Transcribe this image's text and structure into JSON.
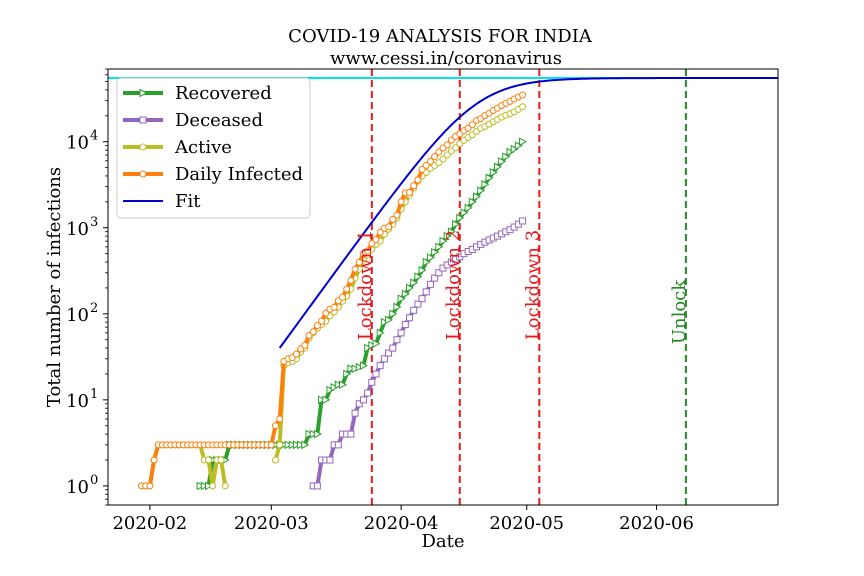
{
  "chart_data": {
    "type": "line",
    "title": "COVID-19 ANALYSIS FOR INDIA",
    "subtitle": "www.cessi.in/coronavirus",
    "xlabel": "Date",
    "ylabel": "Total number of infections",
    "yscale": "log",
    "xlim": [
      "2020-01-22",
      "2020-06-30"
    ],
    "ylim": [
      0.6,
      70000
    ],
    "x_ticks": [
      "2020-02",
      "2020-03",
      "2020-04",
      "2020-05",
      "2020-06"
    ],
    "y_ticks": [
      "10^0",
      "10^1",
      "10^2",
      "10^3",
      "10^4"
    ],
    "grid": false,
    "legend_position": "top-left",
    "horizontal_line": {
      "y": 55000,
      "color": "#00e5ee"
    },
    "vertical_lines": [
      {
        "date": "2020-03-25",
        "label": "Lockdown 1",
        "color": "#e41a1c"
      },
      {
        "date": "2020-04-15",
        "label": "Lockdown 2",
        "color": "#e41a1c"
      },
      {
        "date": "2020-05-04",
        "label": "Lockdown 3",
        "color": "#e41a1c"
      },
      {
        "date": "2020-06-08",
        "label": "Unlock",
        "color": "#228b22"
      }
    ],
    "series": [
      {
        "name": "Recovered",
        "color": "#2ca02c",
        "marker": "triangle",
        "segments": [
          {
            "x": [
              "2020-02-13",
              "2020-02-14",
              "2020-02-15",
              "2020-02-16",
              "2020-02-17",
              "2020-02-18",
              "2020-02-19",
              "2020-02-20",
              "2020-02-21",
              "2020-02-22",
              "2020-02-23",
              "2020-02-24",
              "2020-02-25",
              "2020-02-26",
              "2020-02-27",
              "2020-02-28",
              "2020-02-29",
              "2020-03-01",
              "2020-03-02",
              "2020-03-03",
              "2020-03-04",
              "2020-03-05",
              "2020-03-06",
              "2020-03-07",
              "2020-03-08",
              "2020-03-09",
              "2020-03-10",
              "2020-03-11",
              "2020-03-12",
              "2020-03-13",
              "2020-03-14",
              "2020-03-15",
              "2020-03-16",
              "2020-03-17",
              "2020-03-18",
              "2020-03-19",
              "2020-03-20",
              "2020-03-21",
              "2020-03-22",
              "2020-03-23",
              "2020-03-24",
              "2020-03-25",
              "2020-03-26",
              "2020-03-27",
              "2020-03-28",
              "2020-03-29",
              "2020-03-30",
              "2020-03-31",
              "2020-04-01",
              "2020-04-02",
              "2020-04-03",
              "2020-04-04",
              "2020-04-05",
              "2020-04-06",
              "2020-04-07",
              "2020-04-08",
              "2020-04-09",
              "2020-04-10",
              "2020-04-11",
              "2020-04-12",
              "2020-04-13",
              "2020-04-14",
              "2020-04-15",
              "2020-04-16",
              "2020-04-17",
              "2020-04-18",
              "2020-04-19",
              "2020-04-20",
              "2020-04-21",
              "2020-04-22",
              "2020-04-23",
              "2020-04-24",
              "2020-04-25",
              "2020-04-26",
              "2020-04-27",
              "2020-04-28",
              "2020-04-29",
              "2020-04-30"
            ],
            "y": [
              1,
              1,
              1,
              2,
              2,
              2,
              2,
              3,
              3,
              3,
              3,
              3,
              3,
              3,
              3,
              3,
              3,
              3,
              3,
              3,
              3,
              3,
              3,
              3,
              3,
              3,
              4,
              4,
              4,
              10,
              10,
              13,
              14,
              15,
              15,
              20,
              23,
              23,
              24,
              25,
              40,
              43,
              45,
              60,
              80,
              85,
              100,
              120,
              150,
              170,
              200,
              230,
              270,
              320,
              400,
              450,
              520,
              600,
              700,
              800,
              900,
              1100,
              1300,
              1500,
              1700,
              2000,
              2300,
              2700,
              3200,
              3800,
              4400,
              5100,
              5900,
              6700,
              7600,
              8200,
              9000,
              10000
            ]
          }
        ]
      },
      {
        "name": "Deceased",
        "color": "#9467bd",
        "marker": "square",
        "segments": [
          {
            "x": [
              "2020-03-11",
              "2020-03-12",
              "2020-03-13",
              "2020-03-14",
              "2020-03-15",
              "2020-03-16",
              "2020-03-17",
              "2020-03-18",
              "2020-03-19",
              "2020-03-20",
              "2020-03-21",
              "2020-03-22",
              "2020-03-23",
              "2020-03-24",
              "2020-03-25",
              "2020-03-26",
              "2020-03-27",
              "2020-03-28",
              "2020-03-29",
              "2020-03-30",
              "2020-03-31",
              "2020-04-01",
              "2020-04-02",
              "2020-04-03",
              "2020-04-04",
              "2020-04-05",
              "2020-04-06",
              "2020-04-07",
              "2020-04-08",
              "2020-04-09",
              "2020-04-10",
              "2020-04-11",
              "2020-04-12",
              "2020-04-13",
              "2020-04-14",
              "2020-04-15",
              "2020-04-16",
              "2020-04-17",
              "2020-04-18",
              "2020-04-19",
              "2020-04-20",
              "2020-04-21",
              "2020-04-22",
              "2020-04-23",
              "2020-04-24",
              "2020-04-25",
              "2020-04-26",
              "2020-04-27",
              "2020-04-28",
              "2020-04-29",
              "2020-04-30"
            ],
            "y": [
              1,
              1,
              2,
              2,
              2,
              3,
              3,
              4,
              4,
              4,
              7,
              9,
              10,
              12,
              16,
              20,
              25,
              30,
              35,
              40,
              50,
              60,
              75,
              90,
              110,
              130,
              150,
              180,
              220,
              260,
              300,
              340,
              370,
              400,
              430,
              460,
              500,
              530,
              560,
              600,
              640,
              680,
              720,
              760,
              800,
              850,
              900,
              950,
              1020,
              1100,
              1200
            ]
          }
        ]
      },
      {
        "name": "Active",
        "color": "#bcbd22",
        "marker": "circle",
        "segments": [
          {
            "x": [
              "2020-01-30",
              "2020-01-31",
              "2020-02-01",
              "2020-02-02",
              "2020-02-03",
              "2020-02-04",
              "2020-02-05",
              "2020-02-06",
              "2020-02-07",
              "2020-02-08",
              "2020-02-09",
              "2020-02-10",
              "2020-02-11",
              "2020-02-12",
              "2020-02-13",
              "2020-02-14",
              "2020-02-15",
              "2020-02-16",
              "2020-02-17",
              "2020-02-18",
              "2020-02-19"
            ],
            "y": [
              1,
              1,
              1,
              2,
              3,
              3,
              3,
              3,
              3,
              3,
              3,
              3,
              3,
              3,
              3,
              2,
              2,
              1,
              2,
              2,
              1
            ]
          },
          {
            "x": [
              "2020-03-02",
              "2020-03-03",
              "2020-03-04",
              "2020-03-05",
              "2020-03-06",
              "2020-03-07",
              "2020-03-08",
              "2020-03-09",
              "2020-03-10",
              "2020-03-11",
              "2020-03-12",
              "2020-03-13",
              "2020-03-14",
              "2020-03-15",
              "2020-03-16",
              "2020-03-17",
              "2020-03-18",
              "2020-03-19",
              "2020-03-20",
              "2020-03-21",
              "2020-03-22",
              "2020-03-23",
              "2020-03-24",
              "2020-03-25",
              "2020-03-26",
              "2020-03-27",
              "2020-03-28",
              "2020-03-29",
              "2020-03-30",
              "2020-03-31",
              "2020-04-01",
              "2020-04-02",
              "2020-04-03",
              "2020-04-04",
              "2020-04-05",
              "2020-04-06",
              "2020-04-07",
              "2020-04-08",
              "2020-04-09",
              "2020-04-10",
              "2020-04-11",
              "2020-04-12",
              "2020-04-13",
              "2020-04-14",
              "2020-04-15",
              "2020-04-16",
              "2020-04-17",
              "2020-04-18",
              "2020-04-19",
              "2020-04-20",
              "2020-04-21",
              "2020-04-22",
              "2020-04-23",
              "2020-04-24",
              "2020-04-25",
              "2020-04-26",
              "2020-04-27",
              "2020-04-28",
              "2020-04-29",
              "2020-04-30"
            ],
            "y": [
              2,
              3,
              25,
              27,
              28,
              30,
              36,
              40,
              52,
              60,
              68,
              75,
              82,
              95,
              105,
              120,
              140,
              160,
              195,
              260,
              330,
              420,
              480,
              560,
              640,
              700,
              840,
              960,
              1100,
              1300,
              1650,
              2000,
              2400,
              2900,
              3500,
              4000,
              4400,
              4900,
              5300,
              5700,
              6300,
              7000,
              7800,
              8500,
              9500,
              10400,
              11200,
              12000,
              13200,
              14300,
              15000,
              16000,
              17000,
              18200,
              19300,
              20300,
              21200,
              22200,
              23800,
              25500
            ]
          }
        ]
      },
      {
        "name": "Daily Infected",
        "color": "#ff7f0e",
        "marker": "circle",
        "segments": [
          {
            "x": [
              "2020-01-30",
              "2020-01-31",
              "2020-02-01",
              "2020-02-02",
              "2020-02-03",
              "2020-02-04",
              "2020-02-05",
              "2020-02-06",
              "2020-02-07",
              "2020-02-08",
              "2020-02-09",
              "2020-02-10",
              "2020-02-11",
              "2020-02-12",
              "2020-02-13",
              "2020-02-14",
              "2020-02-15",
              "2020-02-16",
              "2020-02-17",
              "2020-02-18",
              "2020-02-19",
              "2020-02-20",
              "2020-02-21",
              "2020-02-22",
              "2020-02-23",
              "2020-02-24",
              "2020-02-25",
              "2020-02-26",
              "2020-02-27",
              "2020-02-28",
              "2020-02-29",
              "2020-03-01",
              "2020-03-02",
              "2020-03-03",
              "2020-03-04",
              "2020-03-05",
              "2020-03-06",
              "2020-03-07",
              "2020-03-08",
              "2020-03-09",
              "2020-03-10",
              "2020-03-11",
              "2020-03-12",
              "2020-03-13",
              "2020-03-14",
              "2020-03-15",
              "2020-03-16",
              "2020-03-17",
              "2020-03-18",
              "2020-03-19",
              "2020-03-20",
              "2020-03-21",
              "2020-03-22",
              "2020-03-23",
              "2020-03-24",
              "2020-03-25",
              "2020-03-26",
              "2020-03-27",
              "2020-03-28",
              "2020-03-29",
              "2020-03-30",
              "2020-03-31",
              "2020-04-01",
              "2020-04-02",
              "2020-04-03",
              "2020-04-04",
              "2020-04-05",
              "2020-04-06",
              "2020-04-07",
              "2020-04-08",
              "2020-04-09",
              "2020-04-10",
              "2020-04-11",
              "2020-04-12",
              "2020-04-13",
              "2020-04-14",
              "2020-04-15",
              "2020-04-16",
              "2020-04-17",
              "2020-04-18",
              "2020-04-19",
              "2020-04-20",
              "2020-04-21",
              "2020-04-22",
              "2020-04-23",
              "2020-04-24",
              "2020-04-25",
              "2020-04-26",
              "2020-04-27",
              "2020-04-28",
              "2020-04-29",
              "2020-04-30"
            ],
            "y": [
              1,
              1,
              1,
              2,
              3,
              3,
              3,
              3,
              3,
              3,
              3,
              3,
              3,
              3,
              3,
              3,
              3,
              3,
              3,
              3,
              3,
              3,
              3,
              3,
              3,
              3,
              3,
              3,
              3,
              3,
              3,
              3,
              5,
              6,
              28,
              30,
              31,
              34,
              39,
              43,
              56,
              62,
              73,
              82,
              102,
              113,
              119,
              142,
              156,
              194,
              244,
              330,
              396,
              499,
              536,
              657,
              727,
              887,
              987,
              1024,
              1251,
              1397,
              1998,
              2543,
              2567,
              3082,
              3588,
              4778,
              5311,
              5916,
              6725,
              7598,
              8446,
              9205,
              10453,
              11487,
              12322,
              13430,
              14352,
              15722,
              17615,
              18539,
              20080,
              21370,
              23077,
              24530,
              26283,
              27890,
              29451,
              31324,
              33062,
              34863
            ]
          }
        ]
      },
      {
        "name": "Fit",
        "color": "#0000cc",
        "marker": "none",
        "model": {
          "type": "logistic",
          "K": 55000,
          "r": 0.1537,
          "t0": "2020-04-19",
          "start": "2020-03-03",
          "end": "2020-06-30"
        }
      }
    ]
  }
}
